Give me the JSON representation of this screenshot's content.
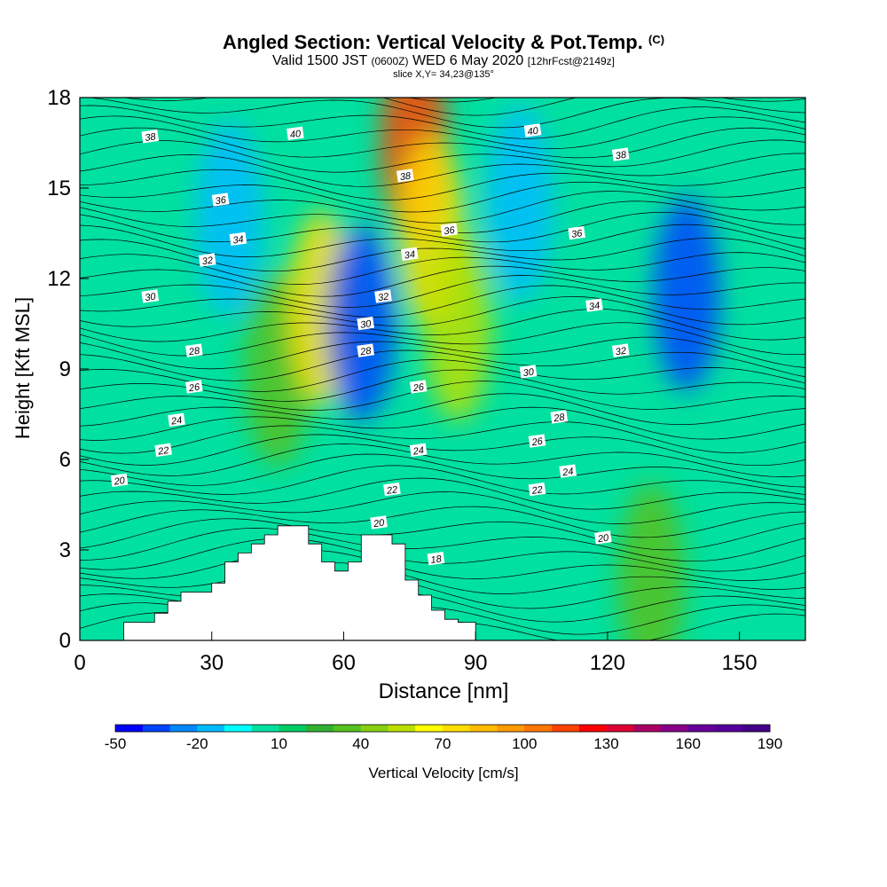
{
  "header": {
    "title": "Angled Section: Vertical Velocity & Pot.Temp.",
    "title_tag": "(C)",
    "valid_prefix": "Valid 1500 JST",
    "valid_utc": "(0600Z)",
    "valid_date": "WED 6 May 2020",
    "forecast": "[12hrFcst@2149z]",
    "slice": "slice X,Y= 34,23@135°"
  },
  "chart_data": {
    "type": "heatmap",
    "title": "Angled Section: Vertical Velocity & Pot.Temp.",
    "xlabel": "Distance [nm]",
    "ylabel": "Height [Kft MSL]",
    "xlim": [
      0,
      165
    ],
    "ylim": [
      0,
      18
    ],
    "x_ticks": [
      0,
      30,
      60,
      90,
      120,
      150
    ],
    "y_ticks": [
      0,
      3,
      6,
      9,
      12,
      15,
      18
    ],
    "colorbar": {
      "label": "Vertical Velocity [cm/s]",
      "tick_labels": [
        "-50",
        "-20",
        "10",
        "40",
        "70",
        "100",
        "130",
        "160",
        "190"
      ],
      "tick_values": [
        -50,
        -20,
        10,
        40,
        70,
        100,
        130,
        160,
        190
      ],
      "min": -50,
      "max": 190,
      "step": 10,
      "colors": [
        "#0000ff",
        "#0044ff",
        "#0088ff",
        "#00bbff",
        "#00ffff",
        "#00e0a0",
        "#00cc66",
        "#33b033",
        "#55c020",
        "#88d010",
        "#bbe000",
        "#ffff00",
        "#ffdd00",
        "#ffbb00",
        "#ff9900",
        "#ff7700",
        "#ff4400",
        "#ff0000",
        "#dd0033",
        "#aa0066",
        "#880088",
        "#660099",
        "#550099",
        "#440088"
      ]
    },
    "velocity_features": [
      {
        "x": 34,
        "y": 14.0,
        "value": -20
      },
      {
        "x": 45,
        "y": 9.0,
        "value": 30
      },
      {
        "x": 55,
        "y": 11.0,
        "value": 70
      },
      {
        "x": 64,
        "y": 10.5,
        "value": -35
      },
      {
        "x": 76,
        "y": 16.5,
        "value": 110
      },
      {
        "x": 80,
        "y": 13.5,
        "value": 70
      },
      {
        "x": 86,
        "y": 10.5,
        "value": 55
      },
      {
        "x": 100,
        "y": 14.5,
        "value": -15
      },
      {
        "x": 138,
        "y": 11.5,
        "value": -35
      },
      {
        "x": 130,
        "y": 2.0,
        "value": 30
      }
    ],
    "terrain_profile": [
      {
        "x": 10,
        "height": 0.6
      },
      {
        "x": 17,
        "height": 0.9
      },
      {
        "x": 20,
        "height": 1.3
      },
      {
        "x": 23,
        "height": 1.6
      },
      {
        "x": 30,
        "height": 1.9
      },
      {
        "x": 33,
        "height": 2.6
      },
      {
        "x": 36,
        "height": 2.9
      },
      {
        "x": 39,
        "height": 3.2
      },
      {
        "x": 42,
        "height": 3.5
      },
      {
        "x": 45,
        "height": 3.8
      },
      {
        "x": 52,
        "height": 3.2
      },
      {
        "x": 55,
        "height": 2.6
      },
      {
        "x": 58,
        "height": 2.3
      },
      {
        "x": 61,
        "height": 2.6
      },
      {
        "x": 64,
        "height": 3.5
      },
      {
        "x": 71,
        "height": 3.2
      },
      {
        "x": 74,
        "height": 2.0
      },
      {
        "x": 77,
        "height": 1.5
      },
      {
        "x": 80,
        "height": 1.0
      },
      {
        "x": 83,
        "height": 0.7
      },
      {
        "x": 86,
        "height": 0.6
      },
      {
        "x": 90,
        "height": 0
      }
    ],
    "isentropes": {
      "levels": [
        18,
        20,
        22,
        24,
        26,
        28,
        30,
        32,
        34,
        36,
        38,
        40
      ],
      "labels": [
        {
          "text": "38",
          "x": 16,
          "y": 16.7
        },
        {
          "text": "40",
          "x": 49,
          "y": 16.8
        },
        {
          "text": "36",
          "x": 32,
          "y": 14.6
        },
        {
          "text": "34",
          "x": 36,
          "y": 13.3
        },
        {
          "text": "32",
          "x": 29,
          "y": 12.6
        },
        {
          "text": "30",
          "x": 16,
          "y": 11.4
        },
        {
          "text": "28",
          "x": 26,
          "y": 9.6
        },
        {
          "text": "26",
          "x": 26,
          "y": 8.4
        },
        {
          "text": "24",
          "x": 22,
          "y": 7.3
        },
        {
          "text": "22",
          "x": 19,
          "y": 6.3
        },
        {
          "text": "20",
          "x": 9,
          "y": 5.3
        },
        {
          "text": "38",
          "x": 74,
          "y": 15.4
        },
        {
          "text": "36",
          "x": 84,
          "y": 13.6
        },
        {
          "text": "34",
          "x": 75,
          "y": 12.8
        },
        {
          "text": "32",
          "x": 69,
          "y": 11.4
        },
        {
          "text": "30",
          "x": 65,
          "y": 10.5
        },
        {
          "text": "28",
          "x": 65,
          "y": 9.6
        },
        {
          "text": "26",
          "x": 77,
          "y": 8.4
        },
        {
          "text": "24",
          "x": 77,
          "y": 6.3
        },
        {
          "text": "22",
          "x": 71,
          "y": 5.0
        },
        {
          "text": "20",
          "x": 68,
          "y": 3.9
        },
        {
          "text": "18",
          "x": 81,
          "y": 2.7
        },
        {
          "text": "40",
          "x": 103,
          "y": 16.9
        },
        {
          "text": "38",
          "x": 123,
          "y": 16.1
        },
        {
          "text": "36",
          "x": 113,
          "y": 13.5
        },
        {
          "text": "34",
          "x": 117,
          "y": 11.1
        },
        {
          "text": "32",
          "x": 123,
          "y": 9.6
        },
        {
          "text": "30",
          "x": 102,
          "y": 8.9
        },
        {
          "text": "28",
          "x": 109,
          "y": 7.4
        },
        {
          "text": "26",
          "x": 104,
          "y": 6.6
        },
        {
          "text": "24",
          "x": 111,
          "y": 5.6
        },
        {
          "text": "22",
          "x": 104,
          "y": 5.0
        },
        {
          "text": "20",
          "x": 119,
          "y": 3.4
        }
      ]
    }
  }
}
